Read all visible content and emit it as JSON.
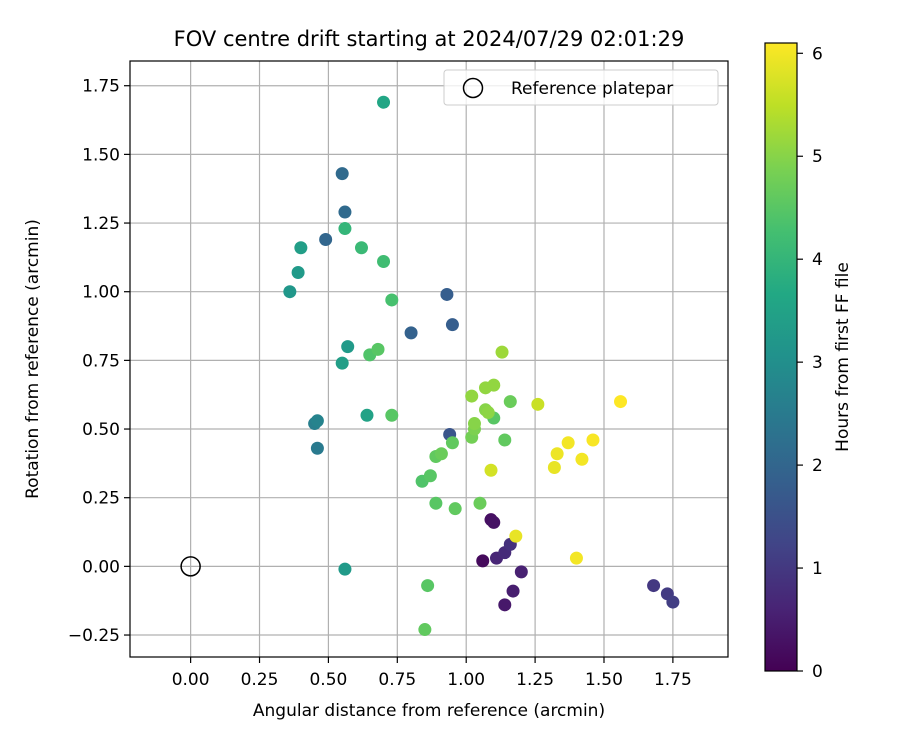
{
  "chart_data": {
    "type": "scatter",
    "title": "FOV centre drift starting at 2024/07/29 02:01:29",
    "xlabel": "Angular distance from reference (arcmin)",
    "ylabel": "Rotation from reference (arcmin)",
    "xlim": [
      -0.22,
      1.95
    ],
    "ylim": [
      -0.33,
      1.84
    ],
    "xticks": [
      "0.00",
      "0.25",
      "0.50",
      "0.75",
      "1.00",
      "1.25",
      "1.50",
      "1.75"
    ],
    "yticks": [
      "−0.25",
      "0.00",
      "0.25",
      "0.50",
      "0.75",
      "1.00",
      "1.25",
      "1.50",
      "1.75"
    ],
    "grid": true,
    "colormap": "viridis",
    "colorbar": {
      "label": "Hours from first FF file",
      "range": [
        0,
        6.1
      ],
      "ticks": [
        "0",
        "1",
        "2",
        "3",
        "4",
        "5",
        "6"
      ]
    },
    "legend": {
      "position": "top-right",
      "entries": [
        "Reference platepar"
      ]
    },
    "reference_point": {
      "x": 0.0,
      "y": 0.0
    },
    "points": [
      {
        "x": 1.06,
        "y": 0.02,
        "h": 0.15
      },
      {
        "x": 1.09,
        "y": 0.17,
        "h": 0.25
      },
      {
        "x": 1.1,
        "y": 0.16,
        "h": 0.3
      },
      {
        "x": 1.14,
        "y": -0.14,
        "h": 0.4
      },
      {
        "x": 1.17,
        "y": -0.09,
        "h": 0.5
      },
      {
        "x": 1.2,
        "y": -0.02,
        "h": 0.55
      },
      {
        "x": 1.11,
        "y": 0.03,
        "h": 0.65
      },
      {
        "x": 1.14,
        "y": 0.05,
        "h": 0.75
      },
      {
        "x": 1.16,
        "y": 0.08,
        "h": 0.85
      },
      {
        "x": 1.68,
        "y": -0.07,
        "h": 1.0
      },
      {
        "x": 1.73,
        "y": -0.1,
        "h": 1.05
      },
      {
        "x": 1.75,
        "y": -0.13,
        "h": 1.1
      },
      {
        "x": 0.94,
        "y": 0.48,
        "h": 1.6
      },
      {
        "x": 0.95,
        "y": 0.88,
        "h": 1.8
      },
      {
        "x": 0.93,
        "y": 0.99,
        "h": 1.8
      },
      {
        "x": 0.8,
        "y": 0.85,
        "h": 1.9
      },
      {
        "x": 0.49,
        "y": 1.19,
        "h": 2.0
      },
      {
        "x": 0.56,
        "y": 1.29,
        "h": 2.1
      },
      {
        "x": 0.55,
        "y": 1.43,
        "h": 2.1
      },
      {
        "x": 0.45,
        "y": 0.52,
        "h": 2.6
      },
      {
        "x": 0.46,
        "y": 0.43,
        "h": 2.5
      },
      {
        "x": 0.46,
        "y": 0.53,
        "h": 2.7
      },
      {
        "x": 0.36,
        "y": 1.0,
        "h": 3.2
      },
      {
        "x": 0.39,
        "y": 1.07,
        "h": 3.3
      },
      {
        "x": 0.4,
        "y": 1.16,
        "h": 3.4
      },
      {
        "x": 0.57,
        "y": 0.8,
        "h": 3.3
      },
      {
        "x": 0.55,
        "y": 0.74,
        "h": 3.4
      },
      {
        "x": 0.56,
        "y": -0.01,
        "h": 3.3
      },
      {
        "x": 0.64,
        "y": 0.55,
        "h": 3.5
      },
      {
        "x": 0.7,
        "y": 1.69,
        "h": 3.6
      },
      {
        "x": 0.56,
        "y": 1.23,
        "h": 4.0
      },
      {
        "x": 0.62,
        "y": 1.16,
        "h": 4.1
      },
      {
        "x": 0.7,
        "y": 1.11,
        "h": 4.2
      },
      {
        "x": 0.73,
        "y": 0.97,
        "h": 4.3
      },
      {
        "x": 0.65,
        "y": 0.77,
        "h": 4.4
      },
      {
        "x": 0.68,
        "y": 0.79,
        "h": 4.5
      },
      {
        "x": 0.73,
        "y": 0.55,
        "h": 4.5
      },
      {
        "x": 0.84,
        "y": 0.31,
        "h": 4.4
      },
      {
        "x": 0.86,
        "y": -0.07,
        "h": 4.5
      },
      {
        "x": 0.85,
        "y": -0.23,
        "h": 4.6
      },
      {
        "x": 0.87,
        "y": 0.33,
        "h": 4.5
      },
      {
        "x": 0.89,
        "y": 0.23,
        "h": 4.5
      },
      {
        "x": 0.89,
        "y": 0.4,
        "h": 4.6
      },
      {
        "x": 0.91,
        "y": 0.41,
        "h": 4.7
      },
      {
        "x": 0.95,
        "y": 0.45,
        "h": 4.6
      },
      {
        "x": 0.96,
        "y": 0.21,
        "h": 4.6
      },
      {
        "x": 1.05,
        "y": 0.23,
        "h": 4.7
      },
      {
        "x": 1.1,
        "y": 0.54,
        "h": 4.5
      },
      {
        "x": 1.14,
        "y": 0.46,
        "h": 4.6
      },
      {
        "x": 1.16,
        "y": 0.6,
        "h": 4.7
      },
      {
        "x": 1.02,
        "y": 0.47,
        "h": 4.8
      },
      {
        "x": 1.03,
        "y": 0.5,
        "h": 4.9
      },
      {
        "x": 1.03,
        "y": 0.52,
        "h": 5.0
      },
      {
        "x": 1.07,
        "y": 0.57,
        "h": 5.0
      },
      {
        "x": 1.08,
        "y": 0.56,
        "h": 5.05
      },
      {
        "x": 1.02,
        "y": 0.62,
        "h": 5.1
      },
      {
        "x": 1.07,
        "y": 0.65,
        "h": 5.1
      },
      {
        "x": 1.1,
        "y": 0.66,
        "h": 5.1
      },
      {
        "x": 1.13,
        "y": 0.78,
        "h": 5.2
      },
      {
        "x": 1.26,
        "y": 0.59,
        "h": 5.6
      },
      {
        "x": 1.09,
        "y": 0.35,
        "h": 5.7
      },
      {
        "x": 1.18,
        "y": 0.11,
        "h": 5.9
      },
      {
        "x": 1.32,
        "y": 0.36,
        "h": 5.9
      },
      {
        "x": 1.33,
        "y": 0.41,
        "h": 5.95
      },
      {
        "x": 1.37,
        "y": 0.45,
        "h": 6.0
      },
      {
        "x": 1.42,
        "y": 0.39,
        "h": 6.0
      },
      {
        "x": 1.4,
        "y": 0.03,
        "h": 6.0
      },
      {
        "x": 1.46,
        "y": 0.46,
        "h": 6.05
      },
      {
        "x": 1.56,
        "y": 0.6,
        "h": 6.1
      }
    ]
  }
}
